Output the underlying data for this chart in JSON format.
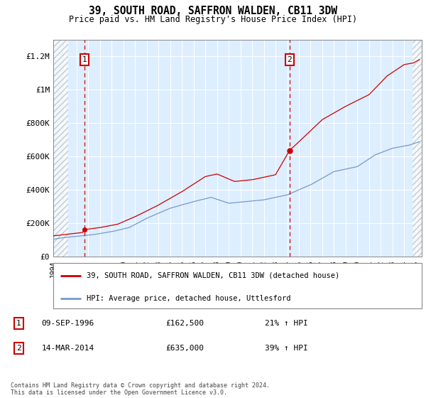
{
  "title": "39, SOUTH ROAD, SAFFRON WALDEN, CB11 3DW",
  "subtitle": "Price paid vs. HM Land Registry's House Price Index (HPI)",
  "ylim": [
    0,
    1300000
  ],
  "xlim_start": 1994.0,
  "xlim_end": 2025.5,
  "yticks": [
    0,
    200000,
    400000,
    600000,
    800000,
    1000000,
    1200000
  ],
  "ytick_labels": [
    "£0",
    "£200K",
    "£400K",
    "£600K",
    "£800K",
    "£1M",
    "£1.2M"
  ],
  "transaction1_date": 1996.69,
  "transaction1_price": 162500,
  "transaction1_label": "1",
  "transaction1_text": "09-SEP-1996",
  "transaction1_price_text": "£162,500",
  "transaction1_hpi_text": "21% ↑ HPI",
  "transaction2_date": 2014.2,
  "transaction2_price": 635000,
  "transaction2_label": "2",
  "transaction2_text": "14-MAR-2014",
  "transaction2_price_text": "£635,000",
  "transaction2_hpi_text": "39% ↑ HPI",
  "line1_label": "39, SOUTH ROAD, SAFFRON WALDEN, CB11 3DW (detached house)",
  "line2_label": "HPI: Average price, detached house, Uttlesford",
  "line1_color": "#cc0000",
  "line2_color": "#7799cc",
  "plot_bg_color": "#ddeeff",
  "footer": "Contains HM Land Registry data © Crown copyright and database right 2024.\nThis data is licensed under the Open Government Licence v3.0.",
  "annotation_box_color": "#cc0000",
  "vline_color": "#cc0000",
  "hatch_left_end": 1995.3,
  "hatch_right_start": 2024.7
}
